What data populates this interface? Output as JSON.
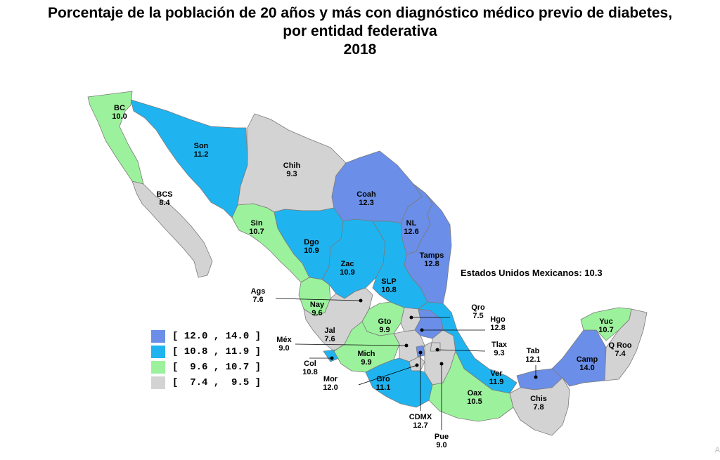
{
  "title": {
    "line1": "Porcentaje de la población de 20 años y más con diagnóstico médico previo de diabetes,",
    "line2": "por entidad federativa",
    "line3": "2018"
  },
  "national": "Estados Unidos Mexicanos: 10.3",
  "colors": {
    "c1": "#6B8FE8",
    "c2": "#1FB4F0",
    "c3": "#9CF29C",
    "c4": "#D3D3D3"
  },
  "legend": [
    {
      "range": "[ 12.0 , 14.0 ]",
      "color": "#6B8FE8"
    },
    {
      "range": "[ 10.8 , 11.9 ]",
      "color": "#1FB4F0"
    },
    {
      "range": "[  9.6 , 10.7 ]",
      "color": "#9CF29C"
    },
    {
      "range": "[  7.4 ,  9.5 ]",
      "color": "#D3D3D3"
    }
  ],
  "states": [
    {
      "abbr": "BC",
      "value": "10.0"
    },
    {
      "abbr": "Son",
      "value": "11.2"
    },
    {
      "abbr": "Chih",
      "value": "9.3"
    },
    {
      "abbr": "BCS",
      "value": "8.4"
    },
    {
      "abbr": "Coah",
      "value": "12.3"
    },
    {
      "abbr": "Sin",
      "value": "10.7"
    },
    {
      "abbr": "NL",
      "value": "12.6"
    },
    {
      "abbr": "Dgo",
      "value": "10.9"
    },
    {
      "abbr": "Tamps",
      "value": "12.8"
    },
    {
      "abbr": "Zac",
      "value": "10.9"
    },
    {
      "abbr": "SLP",
      "value": "10.8"
    },
    {
      "abbr": "Ags",
      "value": "7.6"
    },
    {
      "abbr": "Nay",
      "value": "9.6"
    },
    {
      "abbr": "Qro",
      "value": "7.5"
    },
    {
      "abbr": "Gto",
      "value": "9.9"
    },
    {
      "abbr": "Hgo",
      "value": "12.8"
    },
    {
      "abbr": "Jal",
      "value": "7.6"
    },
    {
      "abbr": "Méx",
      "value": "9.0"
    },
    {
      "abbr": "Tlax",
      "value": "9.3"
    },
    {
      "abbr": "Mich",
      "value": "9.9"
    },
    {
      "abbr": "Col",
      "value": "10.8"
    },
    {
      "abbr": "Mor",
      "value": "12.0"
    },
    {
      "abbr": "Gro",
      "value": "11.1"
    },
    {
      "abbr": "Ver",
      "value": "11.9"
    },
    {
      "abbr": "Tab",
      "value": "12.1"
    },
    {
      "abbr": "Camp",
      "value": "14.0"
    },
    {
      "abbr": "Yuc",
      "value": "10.7"
    },
    {
      "abbr": "Q Roo",
      "value": "7.4"
    },
    {
      "abbr": "Oax",
      "value": "10.5"
    },
    {
      "abbr": "Chis",
      "value": "7.8"
    },
    {
      "abbr": "CDMX",
      "value": "12.7"
    },
    {
      "abbr": "Pue",
      "value": "9.0"
    }
  ],
  "corner_text": "A"
}
